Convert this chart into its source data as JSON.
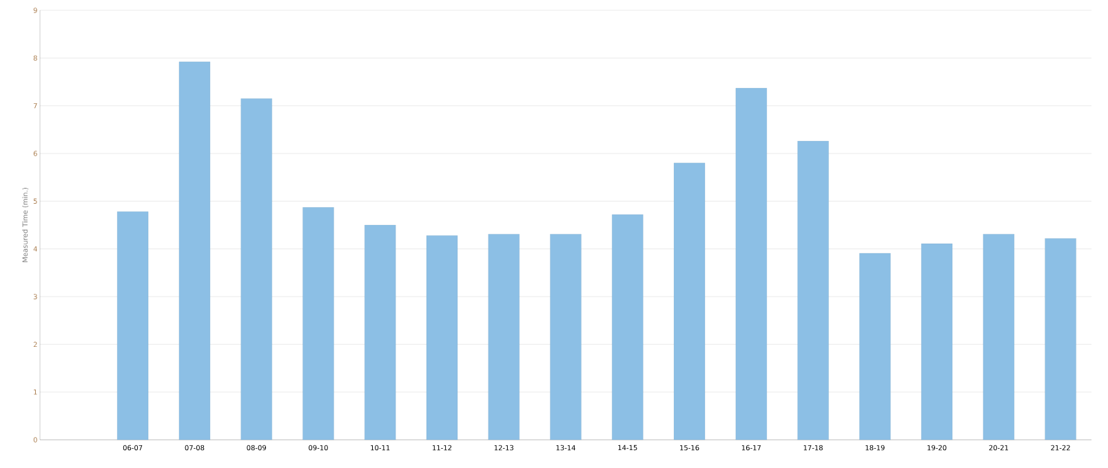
{
  "chart_data": {
    "type": "bar",
    "ylabel": "Measured Time (min.)",
    "categories": [
      null,
      "06-07",
      "07-08",
      "08-09",
      "09-10",
      "10-11",
      "11-12",
      "12-13",
      "13-14",
      "14-15",
      "15-16",
      "16-17",
      "17-18",
      "18-19",
      "19-20",
      "20-21",
      "21-22"
    ],
    "values": [
      null,
      4.78,
      7.92,
      7.15,
      4.87,
      4.5,
      4.28,
      4.31,
      4.31,
      4.72,
      5.8,
      7.37,
      6.26,
      3.91,
      4.11,
      4.31,
      4.22
    ],
    "color": "#8cbfe5",
    "ylim": [
      0,
      9
    ],
    "yticks": [
      0,
      1,
      2,
      3,
      4,
      5,
      6,
      7,
      8,
      9
    ],
    "grid": "y"
  }
}
